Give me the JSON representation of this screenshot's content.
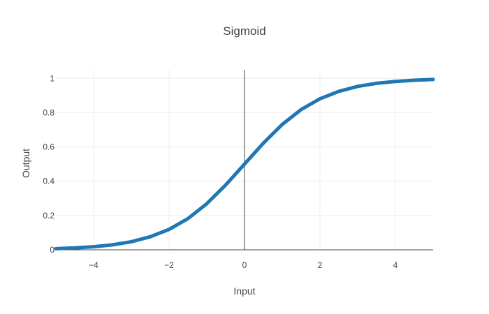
{
  "chart_data": {
    "type": "line",
    "title": "Sigmoid",
    "xlabel": "Input",
    "ylabel": "Output",
    "xlim": [
      -5,
      5
    ],
    "ylim": [
      0,
      1.05
    ],
    "x_ticks": [
      -4,
      -2,
      0,
      2,
      4
    ],
    "x_tick_labels": [
      "−4",
      "−2",
      "0",
      "2",
      "4"
    ],
    "y_ticks": [
      0,
      0.2,
      0.4,
      0.6,
      0.8,
      1
    ],
    "y_tick_labels": [
      "0",
      "0.2",
      "0.4",
      "0.6",
      "0.8",
      "1"
    ],
    "grid": true,
    "series": [
      {
        "color": "#1f77b4",
        "x": [
          -5,
          -4.5,
          -4,
          -3.5,
          -3,
          -2.5,
          -2,
          -1.5,
          -1,
          -0.5,
          0,
          0.5,
          1,
          1.5,
          2,
          2.5,
          3,
          3.5,
          4,
          4.5,
          5
        ],
        "y": [
          0.0067,
          0.011,
          0.018,
          0.029,
          0.047,
          0.076,
          0.119,
          0.182,
          0.269,
          0.378,
          0.5,
          0.622,
          0.731,
          0.818,
          0.881,
          0.924,
          0.953,
          0.971,
          0.982,
          0.989,
          0.9933
        ]
      }
    ]
  }
}
